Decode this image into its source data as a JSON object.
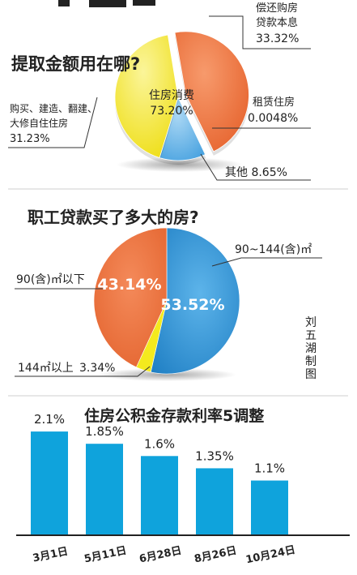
{
  "colors": {
    "orange": "#ef6f3a",
    "orange_dark": "#c24e20",
    "yellow": "#f4ea1e",
    "yellow_dark": "#b9b010",
    "blue": "#3a95d6",
    "blue_light": "#7cc0ec",
    "blue_dark": "#1e6ea8",
    "green": "#5aa84a",
    "bar": "#0fa3dc",
    "text": "#222222",
    "white": "#ffffff"
  },
  "chart_data": [
    {
      "type": "pie",
      "title": "提取金额用在哪?",
      "slices": [
        {
          "label": "偿还购房贷款本息",
          "label_lines": [
            "偿还购房",
            "贷款本息"
          ],
          "value_text": "33.32%",
          "value": 33.32,
          "color": "orange"
        },
        {
          "label": "租赁住房",
          "label_lines": [
            "租赁住房"
          ],
          "value_text": "0.0048%",
          "value": 0.0048,
          "color": "green"
        },
        {
          "label": "其他",
          "label_lines": [],
          "value_text": "其他  8.65%",
          "value": 8.65,
          "color": "blue"
        },
        {
          "label": "购买、建造、翻建、大修自住住房",
          "label_lines": [
            "购买、建造、翻建、",
            "大修自住住房"
          ],
          "value_text": "31.23%",
          "value": 31.23,
          "color": "yellow"
        }
      ],
      "center_label": {
        "name": "住房消费",
        "value_text": "73.20%",
        "value": 73.2
      }
    },
    {
      "type": "pie",
      "title": "职工贷款买了多大的房?",
      "slices": [
        {
          "label": "90~144(含)㎡",
          "value_text": "53.52%",
          "value": 53.52,
          "color": "blue"
        },
        {
          "label": "144㎡以上",
          "value_text": "3.34%",
          "value": 3.34,
          "color": "yellow"
        },
        {
          "label": "90(含)㎡以下",
          "value_text": "43.14%",
          "value": 43.14,
          "color": "orange"
        }
      ]
    },
    {
      "type": "bar",
      "title": "住房公积金存款利率5调整",
      "categories": [
        "3月1日",
        "5月11日",
        "6月28日",
        "8月26日",
        "10月24日"
      ],
      "values": [
        2.1,
        1.85,
        1.6,
        1.35,
        1.1
      ],
      "value_labels": [
        "2.1%",
        "1.85%",
        "1.6%",
        "1.35%",
        "1.1%"
      ],
      "ylim": [
        0,
        2.3
      ]
    }
  ],
  "credit": {
    "lines": [
      "刘",
      "五",
      "湖",
      "制",
      "图"
    ]
  }
}
